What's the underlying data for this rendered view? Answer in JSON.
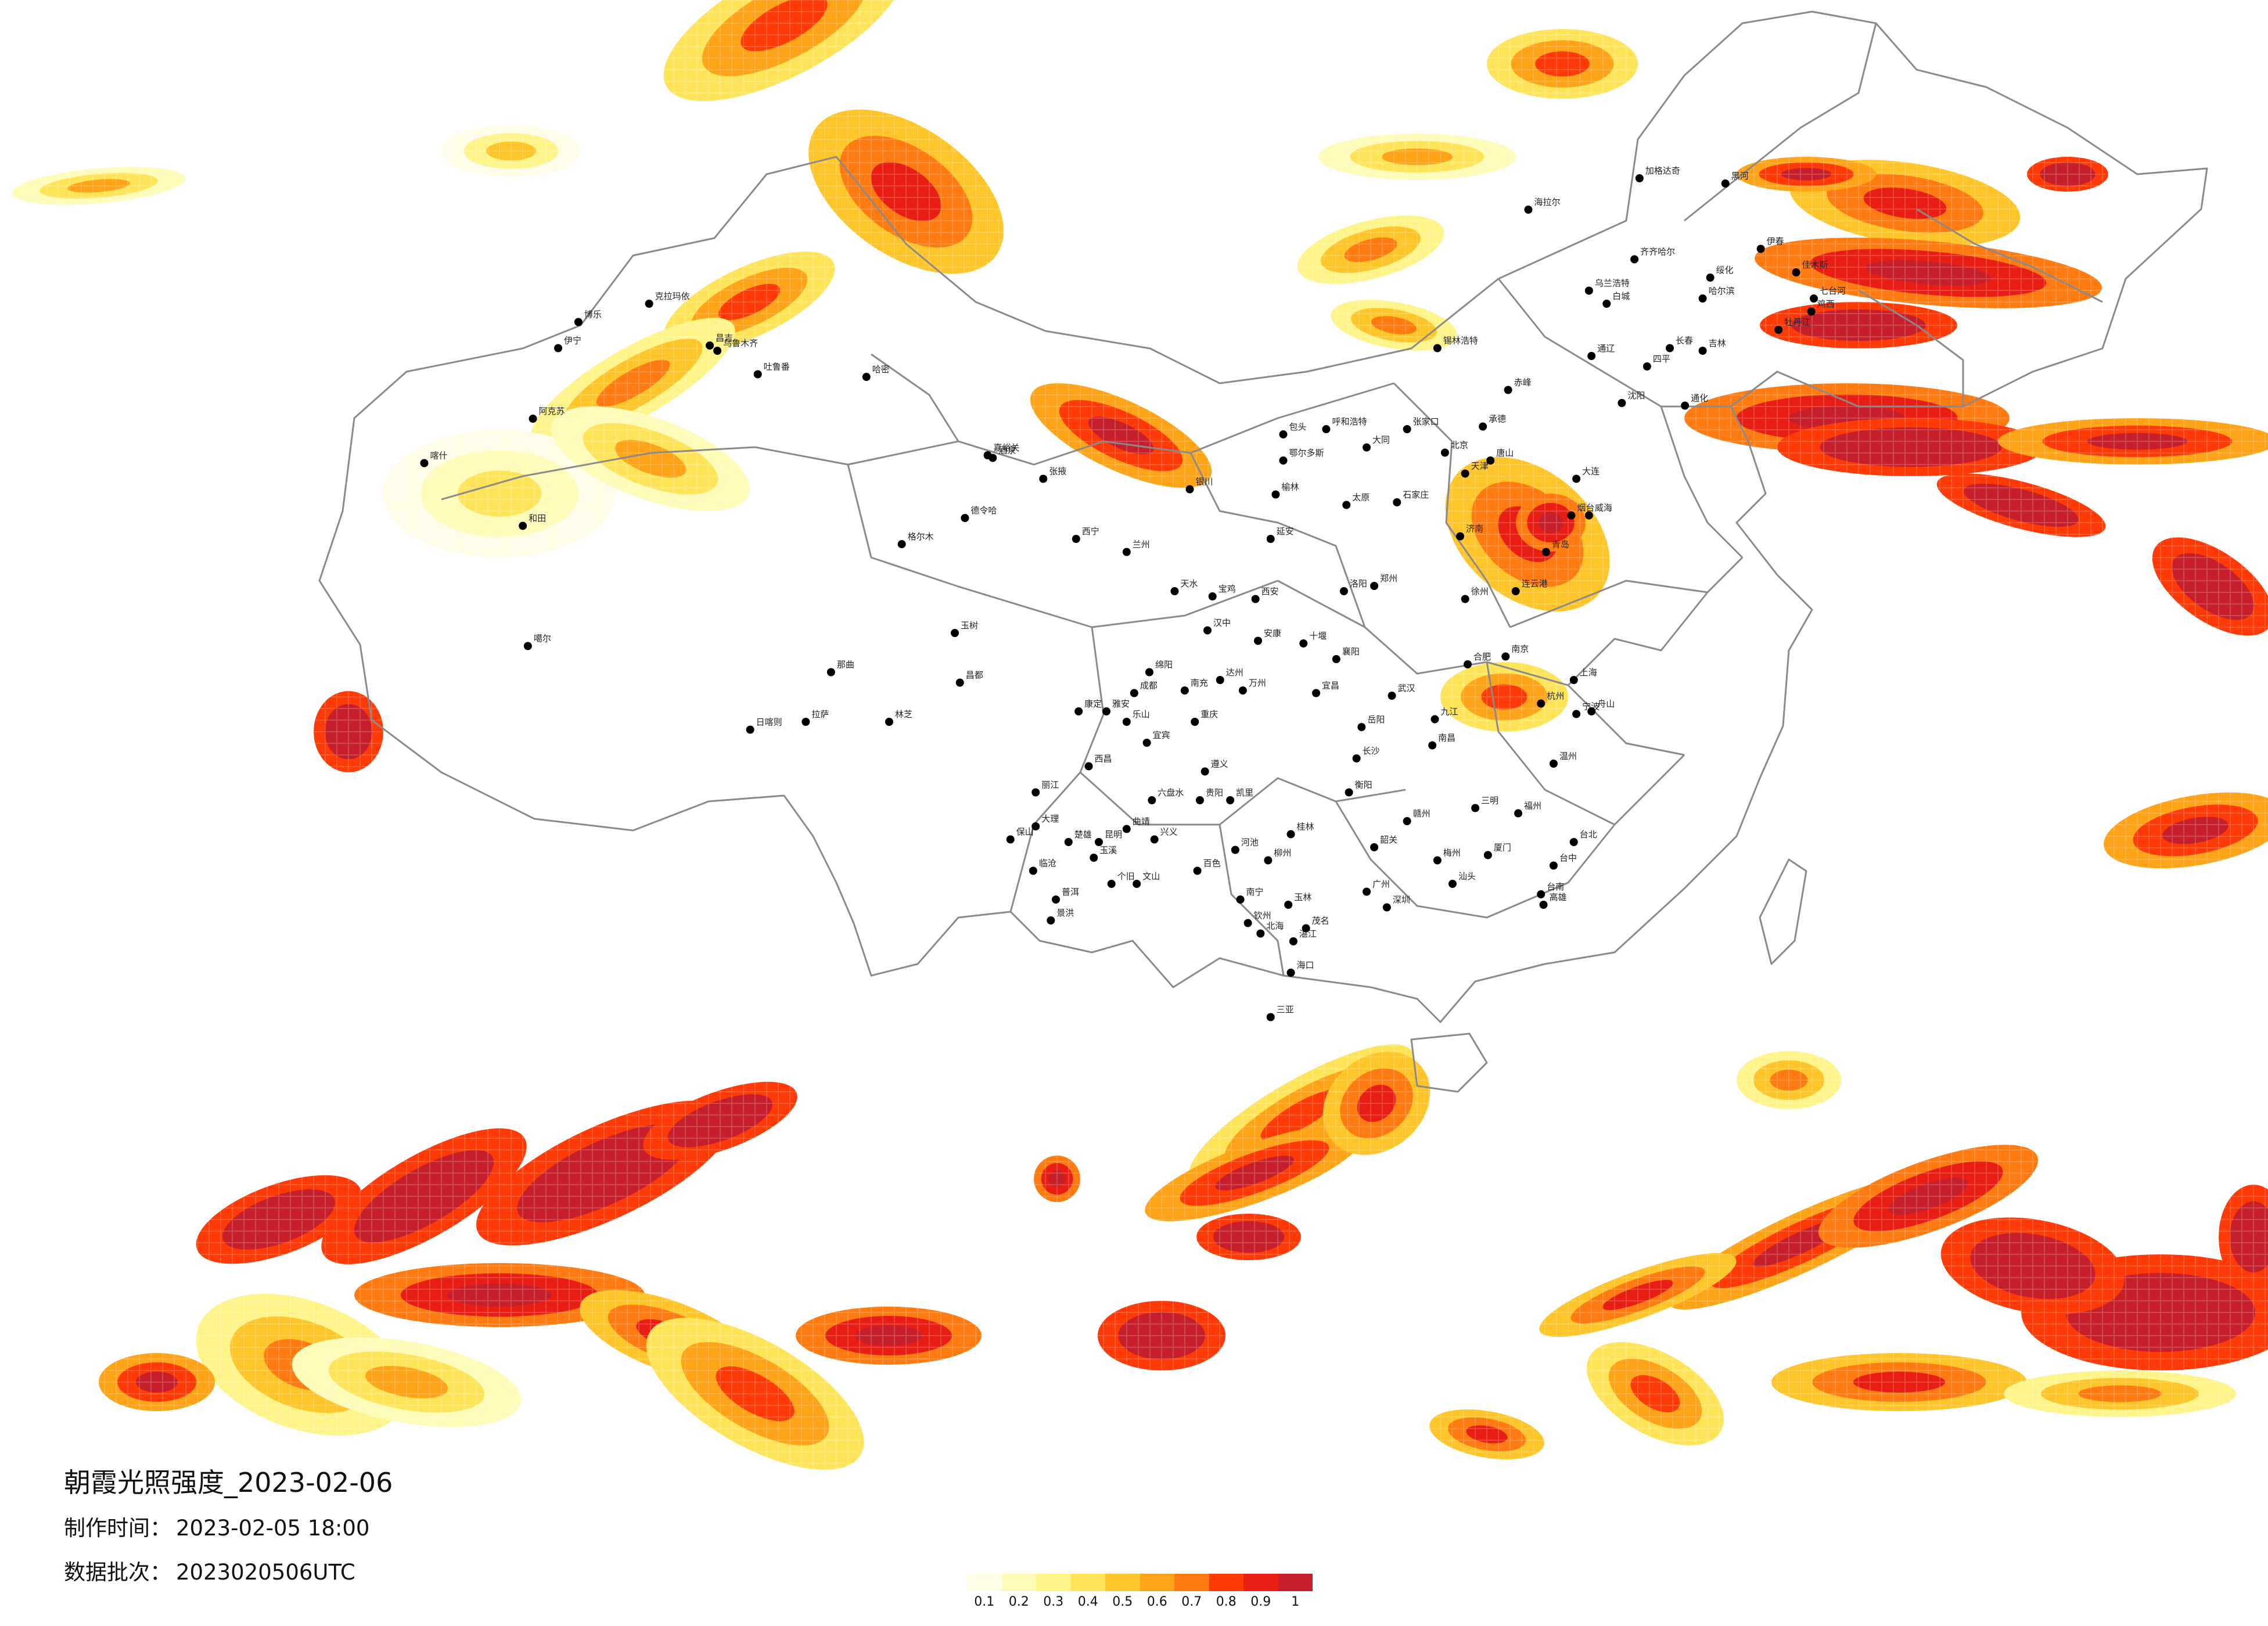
{
  "title": "朝霞光照强度_2023-02-06",
  "meta": [
    {
      "label": "制作时间：",
      "value": "2023-02-05 18:00"
    },
    {
      "label": "数据批次：",
      "value": "2023020506UTC"
    }
  ],
  "legend": {
    "colors": [
      "#fffce8",
      "#fffbb8",
      "#fff48a",
      "#ffe45a",
      "#ffc52a",
      "#ffa418",
      "#ff7a10",
      "#ff3a06",
      "#e81e14",
      "#c41f2a"
    ],
    "ticks": [
      "0.1",
      "0.2",
      "0.3",
      "0.4",
      "0.5",
      "0.6",
      "0.7",
      "0.8",
      "0.9",
      "1"
    ]
  },
  "cities": [
    {
      "name": "克拉玛依",
      "lon": 84.9,
      "lat": 45.6
    },
    {
      "name": "博乐",
      "lon": 82.1,
      "lat": 44.9
    },
    {
      "name": "伊宁",
      "lon": 81.3,
      "lat": 43.9
    },
    {
      "name": "昌吉",
      "lon": 87.3,
      "lat": 44.0
    },
    {
      "name": "乌鲁木齐",
      "lon": 87.6,
      "lat": 43.8
    },
    {
      "name": "吐鲁番",
      "lon": 89.2,
      "lat": 42.9
    },
    {
      "name": "哈密",
      "lon": 93.5,
      "lat": 42.8
    },
    {
      "name": "阿克苏",
      "lon": 80.3,
      "lat": 41.2
    },
    {
      "name": "喀什",
      "lon": 76.0,
      "lat": 39.5
    },
    {
      "name": "和田",
      "lon": 79.9,
      "lat": 37.1
    },
    {
      "name": "嘉峪关",
      "lon": 98.3,
      "lat": 39.8
    },
    {
      "name": "酒泉",
      "lon": 98.5,
      "lat": 39.7
    },
    {
      "name": "张掖",
      "lon": 100.5,
      "lat": 38.9
    },
    {
      "name": "德令哈",
      "lon": 97.4,
      "lat": 37.4
    },
    {
      "name": "西宁",
      "lon": 101.8,
      "lat": 36.6
    },
    {
      "name": "兰州",
      "lon": 103.8,
      "lat": 36.1
    },
    {
      "name": "银川",
      "lon": 106.3,
      "lat": 38.5
    },
    {
      "name": "呼和浩特",
      "lon": 111.7,
      "lat": 40.8
    },
    {
      "name": "包头",
      "lon": 110.0,
      "lat": 40.6
    },
    {
      "name": "鄂尔多斯",
      "lon": 110.0,
      "lat": 39.6
    },
    {
      "name": "海拉尔",
      "lon": 119.7,
      "lat": 49.2
    },
    {
      "name": "加格达奇",
      "lon": 124.1,
      "lat": 50.4
    },
    {
      "name": "黑河",
      "lon": 127.5,
      "lat": 50.2
    },
    {
      "name": "伊春",
      "lon": 128.9,
      "lat": 47.7
    },
    {
      "name": "齐齐哈尔",
      "lon": 123.9,
      "lat": 47.3
    },
    {
      "name": "绥化",
      "lon": 126.9,
      "lat": 46.6
    },
    {
      "name": "哈尔滨",
      "lon": 126.6,
      "lat": 45.8
    },
    {
      "name": "佳木斯",
      "lon": 130.3,
      "lat": 46.8
    },
    {
      "name": "七台河",
      "lon": 131.0,
      "lat": 45.8
    },
    {
      "name": "鸡西",
      "lon": 130.9,
      "lat": 45.3
    },
    {
      "name": "牡丹江",
      "lon": 129.6,
      "lat": 44.6
    },
    {
      "name": "乌兰浩特",
      "lon": 122.1,
      "lat": 46.1
    },
    {
      "name": "白城",
      "lon": 122.8,
      "lat": 45.6
    },
    {
      "name": "锡林浩特",
      "lon": 116.1,
      "lat": 43.9
    },
    {
      "name": "长春",
      "lon": 125.3,
      "lat": 43.9
    },
    {
      "name": "吉林",
      "lon": 126.6,
      "lat": 43.8
    },
    {
      "name": "四平",
      "lon": 124.4,
      "lat": 43.2
    },
    {
      "name": "通辽",
      "lon": 122.2,
      "lat": 43.6
    },
    {
      "name": "赤峰",
      "lon": 118.9,
      "lat": 42.3
    },
    {
      "name": "沈阳",
      "lon": 123.4,
      "lat": 41.8
    },
    {
      "name": "通化",
      "lon": 125.9,
      "lat": 41.7
    },
    {
      "name": "大连",
      "lon": 121.6,
      "lat": 38.9
    },
    {
      "name": "张家口",
      "lon": 114.9,
      "lat": 40.8
    },
    {
      "name": "承德",
      "lon": 117.9,
      "lat": 40.9
    },
    {
      "name": "北京",
      "lon": 116.4,
      "lat": 39.9
    },
    {
      "name": "天津",
      "lon": 117.2,
      "lat": 39.1
    },
    {
      "name": "唐山",
      "lon": 118.2,
      "lat": 39.6
    },
    {
      "name": "石家庄",
      "lon": 114.5,
      "lat": 38.0
    },
    {
      "name": "太原",
      "lon": 112.5,
      "lat": 37.9
    },
    {
      "name": "大同",
      "lon": 113.3,
      "lat": 40.1
    },
    {
      "name": "榆林",
      "lon": 109.7,
      "lat": 38.3
    },
    {
      "name": "延安",
      "lon": 109.5,
      "lat": 36.6
    },
    {
      "name": "西安",
      "lon": 108.9,
      "lat": 34.3
    },
    {
      "name": "宝鸡",
      "lon": 107.2,
      "lat": 34.4
    },
    {
      "name": "天水",
      "lon": 105.7,
      "lat": 34.6
    },
    {
      "name": "郑州",
      "lon": 113.6,
      "lat": 34.8
    },
    {
      "name": "洛阳",
      "lon": 112.4,
      "lat": 34.6
    },
    {
      "name": "济南",
      "lon": 117.0,
      "lat": 36.7
    },
    {
      "name": "青岛",
      "lon": 120.4,
      "lat": 36.1
    },
    {
      "name": "烟台",
      "lon": 121.4,
      "lat": 37.5
    },
    {
      "name": "威海",
      "lon": 122.1,
      "lat": 37.5
    },
    {
      "name": "连云港",
      "lon": 119.2,
      "lat": 34.6
    },
    {
      "name": "徐州",
      "lon": 117.2,
      "lat": 34.3
    },
    {
      "name": "南京",
      "lon": 118.8,
      "lat": 32.1
    },
    {
      "name": "合肥",
      "lon": 117.3,
      "lat": 31.8
    },
    {
      "name": "上海",
      "lon": 121.5,
      "lat": 31.2
    },
    {
      "name": "杭州",
      "lon": 120.2,
      "lat": 30.3
    },
    {
      "name": "宁波",
      "lon": 121.6,
      "lat": 29.9
    },
    {
      "name": "舟山",
      "lon": 122.2,
      "lat": 30.0
    },
    {
      "name": "温州",
      "lon": 120.7,
      "lat": 28.0
    },
    {
      "name": "武汉",
      "lon": 114.3,
      "lat": 30.6
    },
    {
      "name": "宜昌",
      "lon": 111.3,
      "lat": 30.7
    },
    {
      "name": "襄阳",
      "lon": 112.1,
      "lat": 32.0
    },
    {
      "name": "十堰",
      "lon": 110.8,
      "lat": 32.6
    },
    {
      "name": "长沙",
      "lon": 112.9,
      "lat": 28.2
    },
    {
      "name": "岳阳",
      "lon": 113.1,
      "lat": 29.4
    },
    {
      "name": "衡阳",
      "lon": 112.6,
      "lat": 26.9
    },
    {
      "name": "南昌",
      "lon": 115.9,
      "lat": 28.7
    },
    {
      "name": "九江",
      "lon": 116.0,
      "lat": 29.7
    },
    {
      "name": "赣州",
      "lon": 114.9,
      "lat": 25.8
    },
    {
      "name": "福州",
      "lon": 119.3,
      "lat": 26.1
    },
    {
      "name": "厦门",
      "lon": 118.1,
      "lat": 24.5
    },
    {
      "name": "三明",
      "lon": 117.6,
      "lat": 26.3
    },
    {
      "name": "台北",
      "lon": 121.5,
      "lat": 25.0
    },
    {
      "name": "台中",
      "lon": 120.7,
      "lat": 24.1
    },
    {
      "name": "台南",
      "lon": 120.2,
      "lat": 23.0
    },
    {
      "name": "高雄",
      "lon": 120.3,
      "lat": 22.6
    },
    {
      "name": "广州",
      "lon": 113.3,
      "lat": 23.1
    },
    {
      "name": "深圳",
      "lon": 114.1,
      "lat": 22.5
    },
    {
      "name": "汕头",
      "lon": 116.7,
      "lat": 23.4
    },
    {
      "name": "梅州",
      "lon": 116.1,
      "lat": 24.3
    },
    {
      "name": "韶关",
      "lon": 113.6,
      "lat": 24.8
    },
    {
      "name": "湛江",
      "lon": 110.4,
      "lat": 21.2
    },
    {
      "name": "茂名",
      "lon": 110.9,
      "lat": 21.7
    },
    {
      "name": "海口",
      "lon": 110.3,
      "lat": 20.0
    },
    {
      "name": "三亚",
      "lon": 109.5,
      "lat": 18.3
    },
    {
      "name": "南宁",
      "lon": 108.3,
      "lat": 22.8
    },
    {
      "name": "桂林",
      "lon": 110.3,
      "lat": 25.3
    },
    {
      "name": "柳州",
      "lon": 109.4,
      "lat": 24.3
    },
    {
      "name": "玉林",
      "lon": 110.2,
      "lat": 22.6
    },
    {
      "name": "北海",
      "lon": 109.1,
      "lat": 21.5
    },
    {
      "name": "钦州",
      "lon": 108.6,
      "lat": 21.9
    },
    {
      "name": "百色",
      "lon": 106.6,
      "lat": 23.9
    },
    {
      "name": "河池",
      "lon": 108.1,
      "lat": 24.7
    },
    {
      "name": "贵阳",
      "lon": 106.7,
      "lat": 26.6
    },
    {
      "name": "遵义",
      "lon": 106.9,
      "lat": 27.7
    },
    {
      "name": "六盘水",
      "lon": 104.8,
      "lat": 26.6
    },
    {
      "name": "兴义",
      "lon": 104.9,
      "lat": 25.1
    },
    {
      "name": "凯里",
      "lon": 107.9,
      "lat": 26.6
    },
    {
      "name": "昆明",
      "lon": 102.7,
      "lat": 25.0
    },
    {
      "name": "曲靖",
      "lon": 103.8,
      "lat": 25.5
    },
    {
      "name": "大理",
      "lon": 100.2,
      "lat": 25.6
    },
    {
      "name": "保山",
      "lon": 99.2,
      "lat": 25.1
    },
    {
      "name": "丽江",
      "lon": 100.2,
      "lat": 26.9
    },
    {
      "name": "个旧",
      "lon": 103.2,
      "lat": 23.4
    },
    {
      "name": "文山",
      "lon": 104.2,
      "lat": 23.4
    },
    {
      "name": "普洱",
      "lon": 101.0,
      "lat": 22.8
    },
    {
      "name": "景洪",
      "lon": 100.8,
      "lat": 22.0
    },
    {
      "name": "临沧",
      "lon": 100.1,
      "lat": 23.9
    },
    {
      "name": "玉溪",
      "lon": 102.5,
      "lat": 24.4
    },
    {
      "name": "楚雄",
      "lon": 101.5,
      "lat": 25.0
    },
    {
      "name": "成都",
      "lon": 104.1,
      "lat": 30.7
    },
    {
      "name": "重庆",
      "lon": 106.5,
      "lat": 29.6
    },
    {
      "name": "绵阳",
      "lon": 104.7,
      "lat": 31.5
    },
    {
      "name": "南充",
      "lon": 106.1,
      "lat": 30.8
    },
    {
      "name": "达州",
      "lon": 107.5,
      "lat": 31.2
    },
    {
      "name": "乐山",
      "lon": 103.8,
      "lat": 29.6
    },
    {
      "name": "宜宾",
      "lon": 104.6,
      "lat": 28.8
    },
    {
      "name": "西昌",
      "lon": 102.3,
      "lat": 27.9
    },
    {
      "name": "康定",
      "lon": 101.9,
      "lat": 30.0
    },
    {
      "name": "雅安",
      "lon": 103.0,
      "lat": 30.0
    },
    {
      "name": "万州",
      "lon": 108.4,
      "lat": 30.8
    },
    {
      "name": "汉中",
      "lon": 107.0,
      "lat": 33.1
    },
    {
      "name": "安康",
      "lon": 109.0,
      "lat": 32.7
    },
    {
      "name": "拉萨",
      "lon": 91.1,
      "lat": 29.6
    },
    {
      "name": "日喀则",
      "lon": 88.9,
      "lat": 29.3
    },
    {
      "name": "林芝",
      "lon": 94.4,
      "lat": 29.6
    },
    {
      "name": "昌都",
      "lon": 97.2,
      "lat": 31.1
    },
    {
      "name": "那曲",
      "lon": 92.1,
      "lat": 31.5
    },
    {
      "name": "玉树",
      "lon": 97.0,
      "lat": 33.0
    },
    {
      "name": "格尔木",
      "lon": 94.9,
      "lat": 36.4
    },
    {
      "name": "噶尔",
      "lon": 80.1,
      "lat": 32.5
    }
  ]
}
